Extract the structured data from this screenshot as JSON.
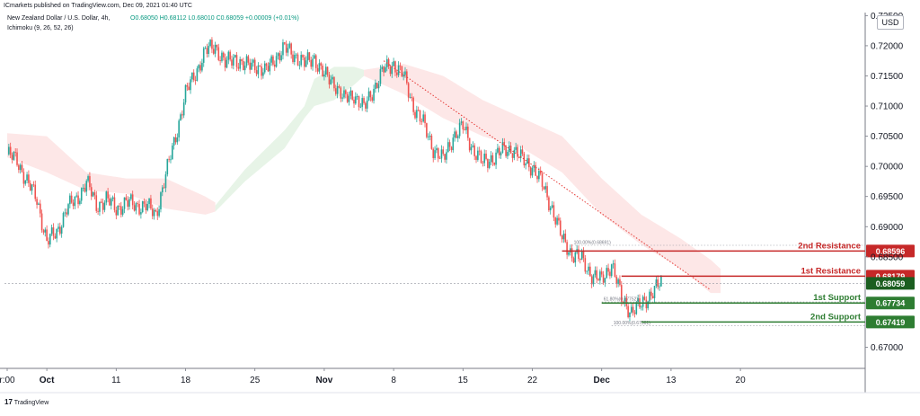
{
  "header": {
    "publisher": "ICmarkets published on TradingView.com, Dec 09, 2021 01:40 UTC",
    "symbol": "New Zealand Dollar / U.S. Dollar, 4h,",
    "ohlc": "O0.68050  H0.68112  L0.68010  C0.68059  +0.00009 (+0.01%)",
    "indicator": "Ichimoku (9, 26, 52, 26)",
    "currency": "USD"
  },
  "footer": {
    "logo": "17",
    "text": "TradingView"
  },
  "colors": {
    "up": "#26a69a",
    "down": "#ef5350",
    "resistance": "#c62828",
    "support": "#2e7d32",
    "cloud_bear": "#fde3e3",
    "cloud_bull": "#e3f2e3",
    "trendline": "#e53935"
  },
  "chart_data": {
    "type": "candlestick",
    "y_axis": {
      "range": [
        0.6665,
        0.7255
      ],
      "ticks": [
        "0.72500",
        "0.72000",
        "0.71500",
        "0.71000",
        "0.70500",
        "0.70000",
        "0.69500",
        "0.69000",
        "0.68500",
        "0.67000"
      ],
      "tick_values": [
        0.725,
        0.72,
        0.715,
        0.71,
        0.705,
        0.7,
        0.695,
        0.69,
        0.685,
        0.67
      ]
    },
    "x_axis": {
      "labels": [
        "r:00",
        "Oct",
        "11",
        "18",
        "25",
        "Nov",
        "8",
        "15",
        "22",
        "Dec",
        "13",
        "20"
      ],
      "bold": [
        false,
        true,
        false,
        false,
        false,
        true,
        false,
        false,
        false,
        true,
        false,
        false
      ],
      "positions_day": [
        0,
        4,
        11,
        18,
        25,
        32,
        39,
        46,
        53,
        60,
        67,
        74
      ]
    },
    "last_candle_day": 66,
    "price_path": [
      [
        0,
        0.702
      ],
      [
        1,
        0.701
      ],
      [
        2,
        0.6975
      ],
      [
        3,
        0.6945
      ],
      [
        4,
        0.6875
      ],
      [
        5,
        0.689
      ],
      [
        6,
        0.693
      ],
      [
        7,
        0.6945
      ],
      [
        8,
        0.6975
      ],
      [
        9,
        0.6935
      ],
      [
        10,
        0.6945
      ],
      [
        11,
        0.693
      ],
      [
        12,
        0.694
      ],
      [
        13,
        0.6935
      ],
      [
        14,
        0.6935
      ],
      [
        15,
        0.692
      ],
      [
        16,
        0.6985
      ],
      [
        17,
        0.705
      ],
      [
        18,
        0.712
      ],
      [
        19,
        0.7155
      ],
      [
        20,
        0.719
      ],
      [
        21,
        0.72
      ],
      [
        22,
        0.717
      ],
      [
        23,
        0.718
      ],
      [
        24,
        0.7165
      ],
      [
        25,
        0.717
      ],
      [
        26,
        0.7155
      ],
      [
        27,
        0.718
      ],
      [
        28,
        0.7195
      ],
      [
        29,
        0.7185
      ],
      [
        30,
        0.717
      ],
      [
        31,
        0.718
      ],
      [
        32,
        0.715
      ],
      [
        33,
        0.714
      ],
      [
        34,
        0.711
      ],
      [
        35,
        0.712
      ],
      [
        36,
        0.7095
      ],
      [
        37,
        0.713
      ],
      [
        38,
        0.716
      ],
      [
        39,
        0.717
      ],
      [
        40,
        0.715
      ],
      [
        41,
        0.71
      ],
      [
        42,
        0.707
      ],
      [
        43,
        0.703
      ],
      [
        44,
        0.701
      ],
      [
        45,
        0.705
      ],
      [
        46,
        0.7065
      ],
      [
        47,
        0.703
      ],
      [
        48,
        0.7005
      ],
      [
        49,
        0.7015
      ],
      [
        50,
        0.7025
      ],
      [
        51,
        0.703
      ],
      [
        52,
        0.701
      ],
      [
        53,
        0.7
      ],
      [
        54,
        0.697
      ],
      [
        55,
        0.693
      ],
      [
        56,
        0.688
      ],
      [
        57,
        0.6855
      ],
      [
        58,
        0.6845
      ],
      [
        59,
        0.682
      ],
      [
        60,
        0.681
      ],
      [
        61,
        0.684
      ],
      [
        62,
        0.678
      ],
      [
        63,
        0.676
      ],
      [
        64,
        0.677
      ],
      [
        65,
        0.679
      ],
      [
        66,
        0.6806
      ]
    ],
    "cloud_bear": [
      [
        0,
        0.7055,
        0.7015
      ],
      [
        4,
        0.705,
        0.699
      ],
      [
        8,
        0.699,
        0.696
      ],
      [
        12,
        0.698,
        0.6955
      ],
      [
        16,
        0.698,
        0.693
      ],
      [
        20,
        0.695,
        0.692
      ],
      [
        21,
        0.694,
        0.6925
      ]
    ],
    "cloud_bull": [
      [
        21,
        0.6935,
        0.6925
      ],
      [
        24,
        0.6995,
        0.6975
      ],
      [
        28,
        0.706,
        0.703
      ],
      [
        30,
        0.71,
        0.708
      ],
      [
        31,
        0.7145,
        0.71
      ],
      [
        33,
        0.7165,
        0.711
      ],
      [
        35,
        0.7165,
        0.7135
      ],
      [
        36,
        0.716,
        0.715
      ]
    ],
    "cloud_bear_2": [
      [
        36,
        0.716,
        0.715
      ],
      [
        40,
        0.717,
        0.712
      ],
      [
        44,
        0.715,
        0.708
      ],
      [
        48,
        0.711,
        0.705
      ],
      [
        52,
        0.708,
        0.703
      ],
      [
        56,
        0.705,
        0.699
      ],
      [
        60,
        0.698,
        0.692
      ],
      [
        64,
        0.692,
        0.687
      ],
      [
        68,
        0.688,
        0.683
      ],
      [
        71,
        0.6845,
        0.679
      ],
      [
        72,
        0.683,
        0.679
      ]
    ],
    "levels": [
      {
        "name": "2nd Resistance",
        "value": 0.68596,
        "label": "0.68596",
        "kind": "resistance",
        "from_day": 56
      },
      {
        "name": "1st Resistance",
        "value": 0.68179,
        "label": "0.68179",
        "kind": "resistance",
        "from_day": 62
      },
      {
        "name": "1st Support",
        "value": 0.67734,
        "label": "0.67734",
        "kind": "support",
        "from_day": 60
      },
      {
        "name": "2nd Support",
        "value": 0.67419,
        "label": "0.67419",
        "kind": "support",
        "from_day": 64
      }
    ],
    "current_price": {
      "value": 0.68059,
      "label": "0.68059"
    },
    "fib_labels": [
      {
        "text": "100.00%(0.68691)",
        "value": 0.68691,
        "day": 57
      },
      {
        "text": "61.80%(0.67752)",
        "value": 0.67752,
        "day": 60
      },
      {
        "text": "100.00%(0.67361)",
        "value": 0.67361,
        "day": 61
      }
    ],
    "trendline": {
      "start": [
        38,
        0.7175
      ],
      "end": [
        71,
        0.6795
      ]
    }
  }
}
